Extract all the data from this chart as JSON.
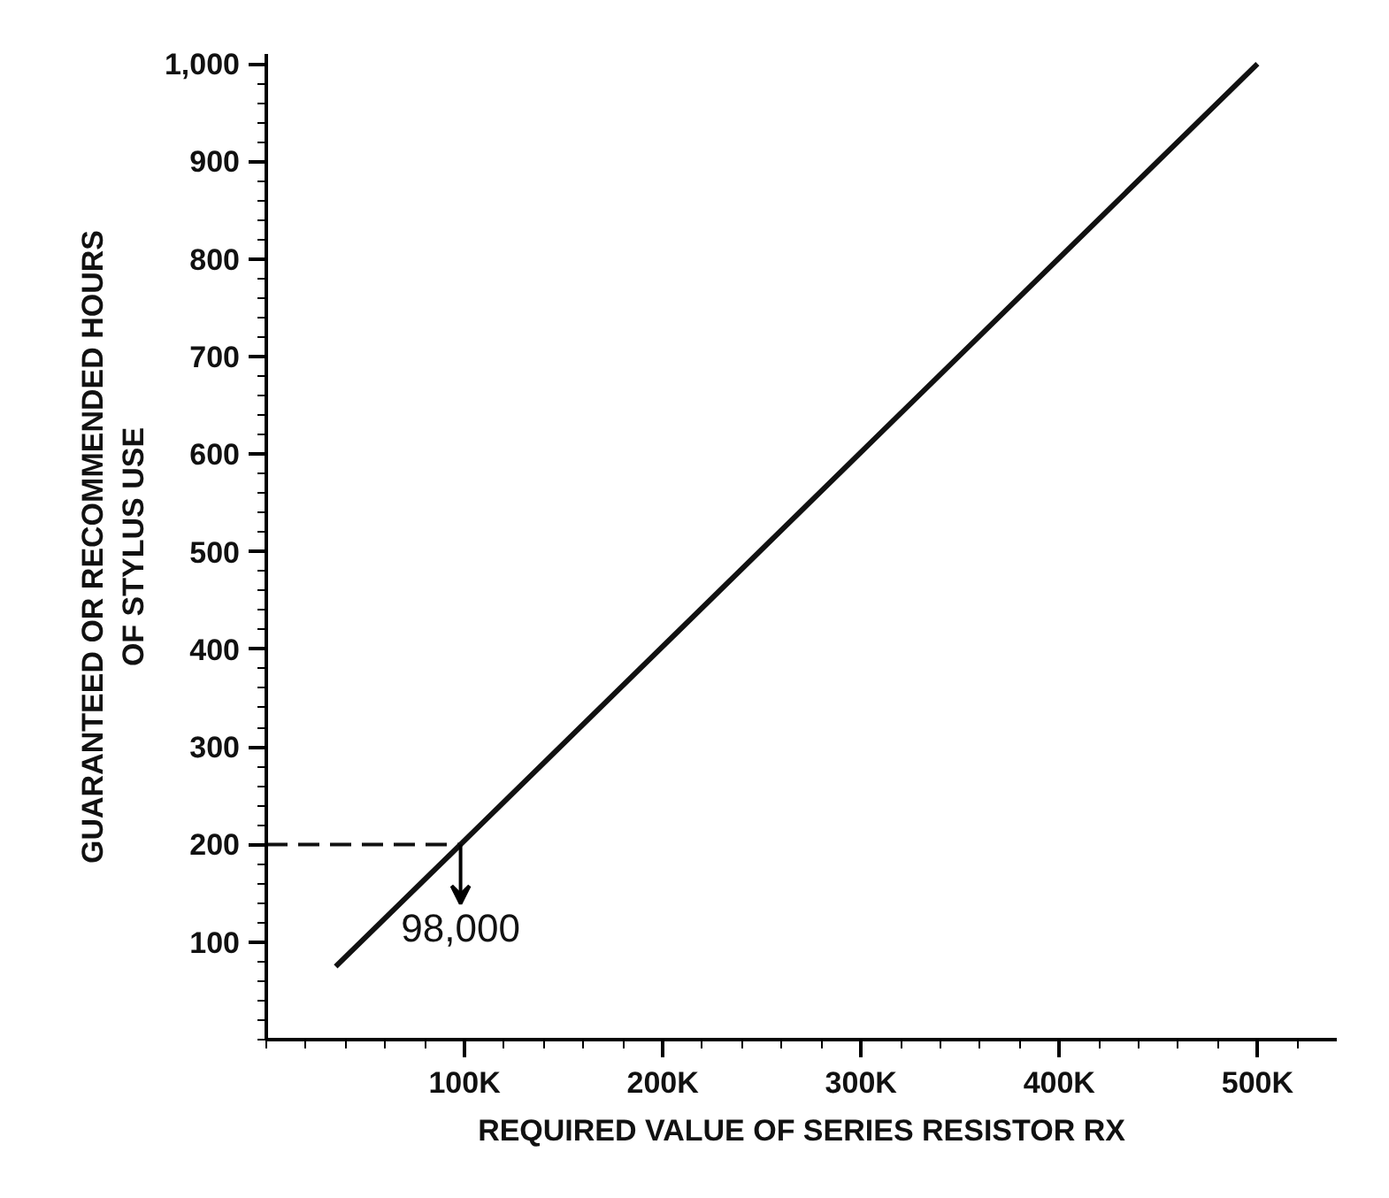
{
  "chart_data": {
    "type": "line",
    "xlabel": "REQUIRED VALUE OF SERIES RESISTOR RX",
    "ylabel": "GUARANTEED OR RECOMMENDED HOURS\nOF STYLUS USE",
    "x": [
      35000,
      98000,
      500000
    ],
    "series": [
      {
        "color": "#111111",
        "values": [
          75,
          200,
          1000
        ]
      },
      {
        "color": "#111111",
        "x": [
          0,
          98000
        ],
        "values": [
          200,
          200
        ],
        "line_style": "dashed"
      }
    ],
    "xlim": [
      0,
      540000
    ],
    "ylim": [
      0,
      1010
    ],
    "xticks": [
      {
        "value": 100000,
        "label": "100K"
      },
      {
        "value": 200000,
        "label": "200K"
      },
      {
        "value": 300000,
        "label": "300K"
      },
      {
        "value": 400000,
        "label": "400K"
      },
      {
        "value": 500000,
        "label": "500K"
      }
    ],
    "yticks": [
      100,
      200,
      300,
      400,
      500,
      600,
      700,
      800,
      900,
      {
        "value": 1000,
        "label": "1,000"
      }
    ],
    "annotations": [
      {
        "text": "98,000",
        "x": 98000,
        "y": 200
      }
    ],
    "grid": false,
    "line_style": "solid"
  }
}
